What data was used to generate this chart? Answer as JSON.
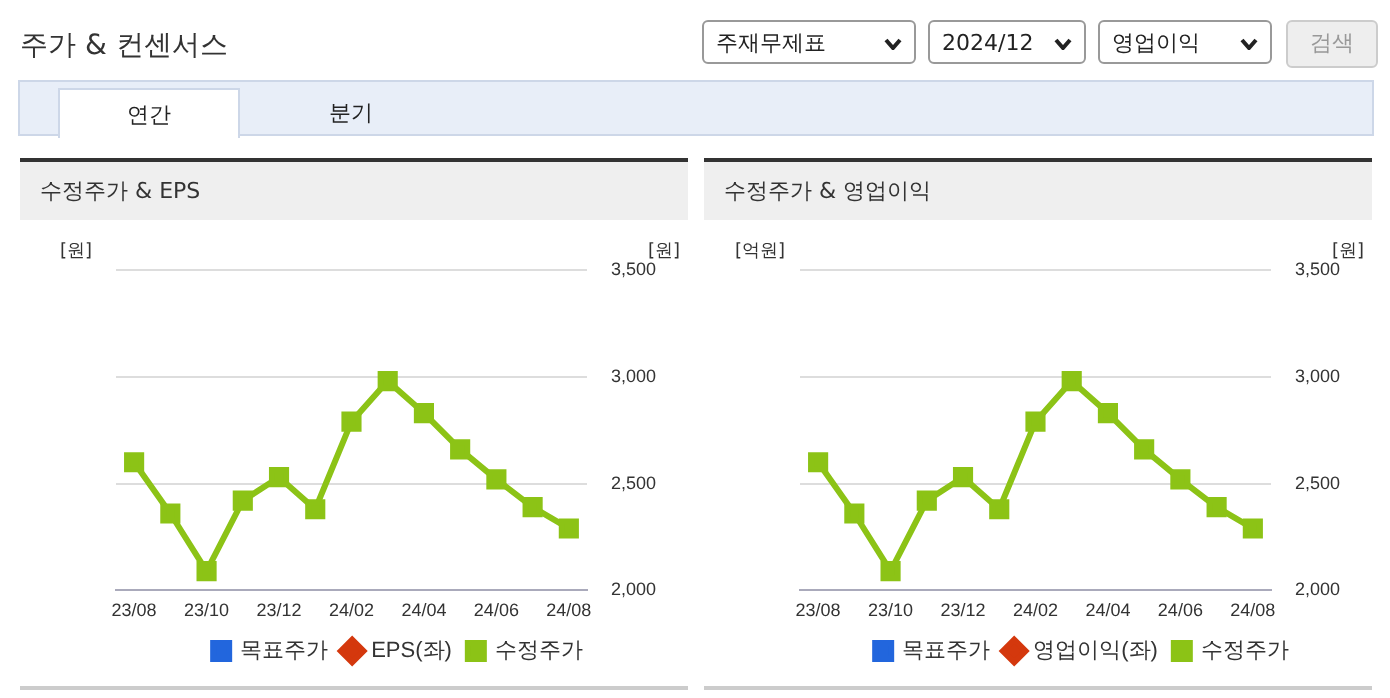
{
  "chart_data": [
    {
      "type": "other",
      "title": "주가 & 컨센서스",
      "annotations": [
        "주재무제표",
        "2024/12",
        "영업이익",
        "검색",
        "연간",
        "분기"
      ]
    },
    {
      "type": "line",
      "title": "수정주가 & EPS",
      "ylabel": "[원]",
      "y2label": "[원]",
      "categories": [
        "23/08",
        null,
        "23/10",
        null,
        "23/12",
        null,
        "24/02",
        null,
        "24/04",
        null,
        "24/06",
        null,
        "24/08"
      ],
      "series": [
        {
          "name": "목표주가",
          "color": "#2266dd",
          "marker": "square",
          "axis": "y2",
          "values": [
            null,
            null,
            null,
            null,
            null,
            null,
            null,
            null,
            null,
            null,
            null,
            null,
            null
          ]
        },
        {
          "name": "EPS(좌)",
          "color": "#d4380d",
          "marker": "diamond",
          "values": [
            null,
            null,
            null,
            null,
            null,
            null,
            null,
            null,
            null,
            null,
            null,
            null,
            null
          ]
        },
        {
          "name": "수정주가",
          "color": "#8cc316",
          "marker": "square",
          "axis": "y2",
          "values": [
            2600,
            2360,
            2090,
            2420,
            2530,
            2380,
            2790,
            2980,
            2830,
            2660,
            2520,
            2390,
            2290
          ]
        }
      ],
      "y2lim": [
        2000,
        3500
      ],
      "y2ticks": [
        {
          "value": 2000,
          "label": "2,000"
        },
        {
          "value": 2500,
          "label": "2,500"
        },
        {
          "value": 3000,
          "label": "3,000"
        },
        {
          "value": 3500,
          "label": "3,500"
        }
      ],
      "grid": "y",
      "legend": "bottom"
    },
    {
      "type": "line",
      "title": "수정주가 & 영업이익",
      "ylabel": "[억원]",
      "y2label": "[원]",
      "categories": [
        "23/08",
        null,
        "23/10",
        null,
        "23/12",
        null,
        "24/02",
        null,
        "24/04",
        null,
        "24/06",
        null,
        "24/08"
      ],
      "series": [
        {
          "name": "목표주가",
          "color": "#2266dd",
          "marker": "square",
          "axis": "y2",
          "values": [
            null,
            null,
            null,
            null,
            null,
            null,
            null,
            null,
            null,
            null,
            null,
            null,
            null
          ]
        },
        {
          "name": "영업이익(좌)",
          "color": "#d4380d",
          "marker": "diamond",
          "values": [
            null,
            null,
            null,
            null,
            null,
            null,
            null,
            null,
            null,
            null,
            null,
            null,
            null
          ]
        },
        {
          "name": "수정주가",
          "color": "#8cc316",
          "marker": "square",
          "axis": "y2",
          "values": [
            2600,
            2360,
            2090,
            2420,
            2530,
            2380,
            2790,
            2980,
            2830,
            2660,
            2520,
            2390,
            2290
          ]
        }
      ],
      "y2lim": [
        2000,
        3500
      ],
      "y2ticks": [
        {
          "value": 2000,
          "label": "2,000"
        },
        {
          "value": 2500,
          "label": "2,500"
        },
        {
          "value": 3000,
          "label": "3,000"
        },
        {
          "value": 3500,
          "label": "3,500"
        }
      ],
      "grid": "y",
      "legend": "bottom"
    }
  ]
}
